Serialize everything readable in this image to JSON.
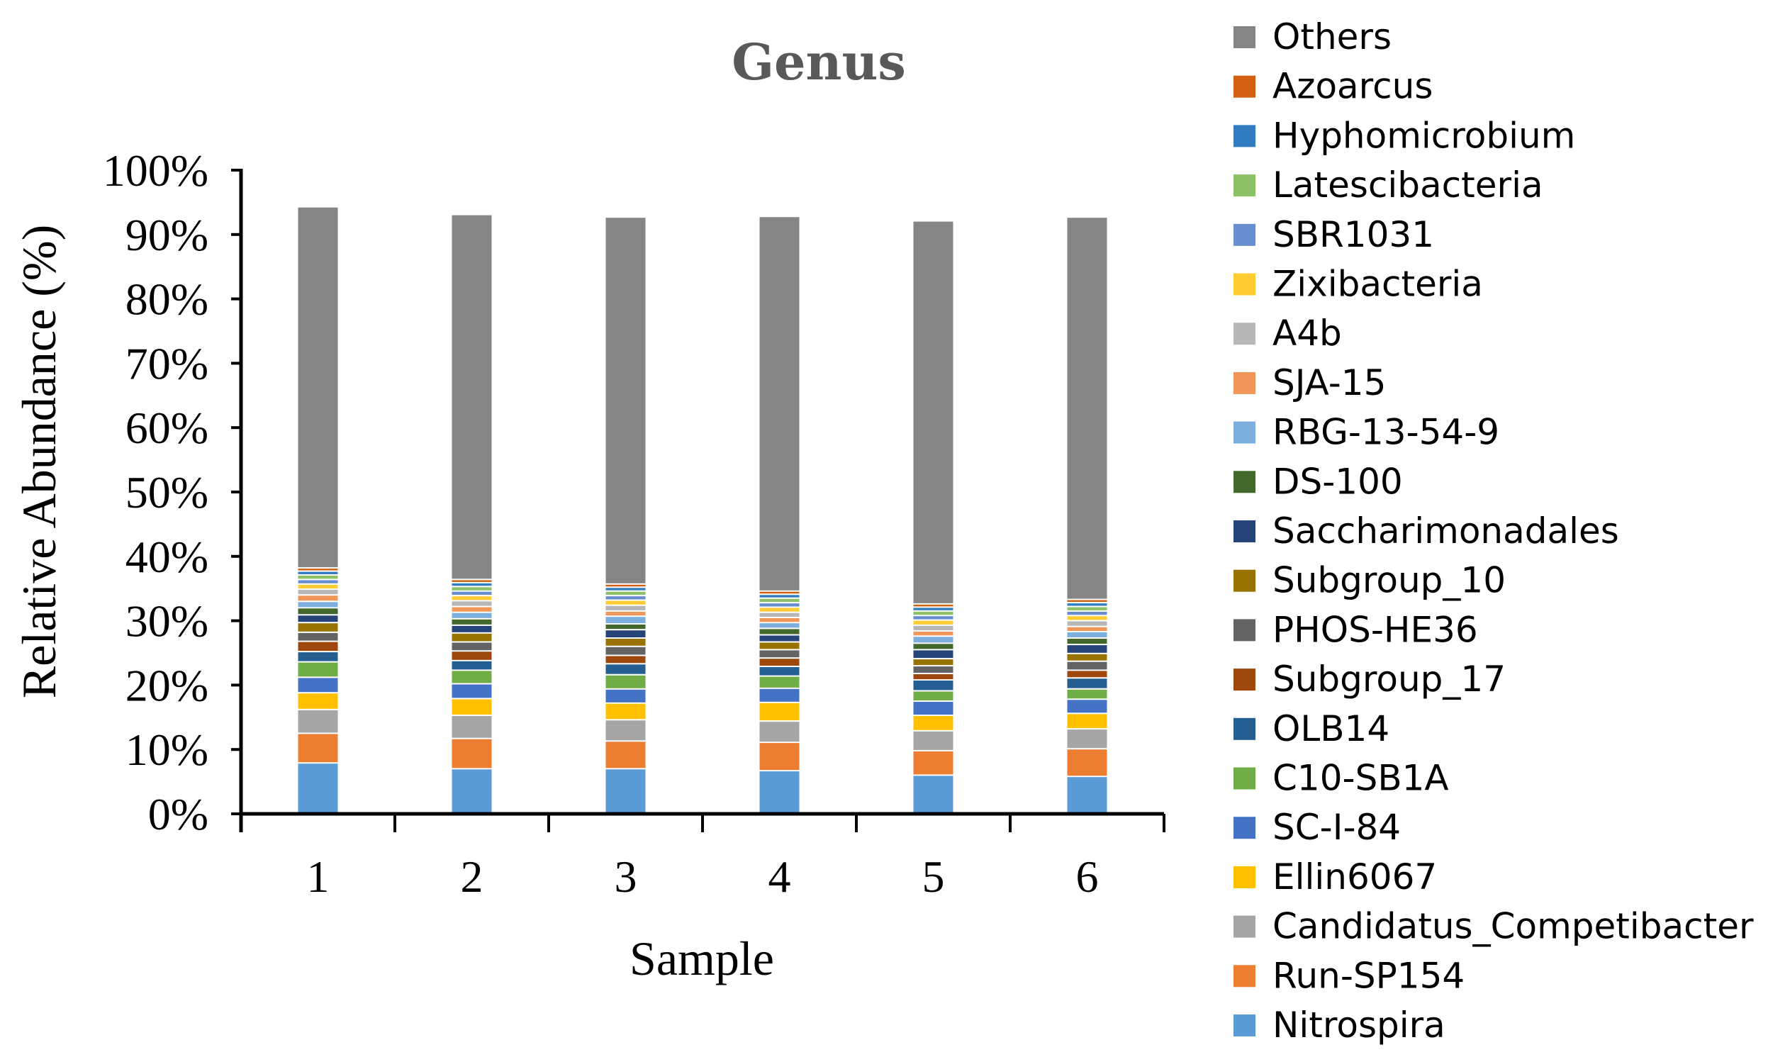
{
  "chart_data": {
    "type": "bar",
    "stacked": true,
    "title": "Genus",
    "xlabel": "Sample",
    "ylabel": "Relative Abundance (%)",
    "ylim": [
      0,
      100
    ],
    "y_ticks": [
      "0%",
      "10%",
      "20%",
      "30%",
      "40%",
      "50%",
      "60%",
      "70%",
      "80%",
      "90%",
      "100%"
    ],
    "categories": [
      "1",
      "2",
      "3",
      "4",
      "5",
      "6"
    ],
    "series": [
      {
        "name": "Nitrospira",
        "color": "#5B9BD5",
        "values": [
          7.8,
          6.9,
          6.9,
          6.6,
          5.9,
          5.7
        ]
      },
      {
        "name": "Run-SP154",
        "color": "#ED7D31",
        "values": [
          4.6,
          4.7,
          4.3,
          4.4,
          3.8,
          4.3
        ]
      },
      {
        "name": "Candidatus_Competibacter",
        "color": "#A5A5A5",
        "values": [
          3.7,
          3.6,
          3.3,
          3.3,
          3.1,
          3.1
        ]
      },
      {
        "name": "Ellin6067",
        "color": "#FFC000",
        "values": [
          2.6,
          2.6,
          2.6,
          2.9,
          2.4,
          2.4
        ]
      },
      {
        "name": "SC-I-84",
        "color": "#4472C4",
        "values": [
          2.4,
          2.3,
          2.2,
          2.2,
          2.2,
          2.2
        ]
      },
      {
        "name": "C10-SB1A",
        "color": "#70AD47",
        "values": [
          2.4,
          2.1,
          2.2,
          1.9,
          1.6,
          1.6
        ]
      },
      {
        "name": "OLB14",
        "color": "#255E91",
        "values": [
          1.6,
          1.5,
          1.7,
          1.5,
          1.7,
          1.7
        ]
      },
      {
        "name": "Subgroup_17",
        "color": "#9E480E",
        "values": [
          1.6,
          1.5,
          1.3,
          1.3,
          1.0,
          1.2
        ]
      },
      {
        "name": "PHOS-HE36",
        "color": "#636363",
        "values": [
          1.4,
          1.4,
          1.4,
          1.3,
          1.2,
          1.4
        ]
      },
      {
        "name": "Subgroup_10",
        "color": "#997300",
        "values": [
          1.5,
          1.4,
          1.3,
          1.2,
          1.1,
          1.2
        ]
      },
      {
        "name": "Saccharimonadales",
        "color": "#264478",
        "values": [
          1.2,
          1.2,
          1.3,
          1.1,
          1.4,
          1.4
        ]
      },
      {
        "name": "DS-100",
        "color": "#43682B",
        "values": [
          1.1,
          1.0,
          0.9,
          1.0,
          1.0,
          1.0
        ]
      },
      {
        "name": "RBG-13-54-9",
        "color": "#7CAFDD",
        "values": [
          1.0,
          1.0,
          1.2,
          0.9,
          1.1,
          1.0
        ]
      },
      {
        "name": "SJA-15",
        "color": "#F1975A",
        "values": [
          1.0,
          0.9,
          0.8,
          0.8,
          0.8,
          0.8
        ]
      },
      {
        "name": "A4b",
        "color": "#B7B7B7",
        "values": [
          0.9,
          0.9,
          0.9,
          0.8,
          0.9,
          0.9
        ]
      },
      {
        "name": "Zixibacteria",
        "color": "#FFCD33",
        "values": [
          0.8,
          0.8,
          0.8,
          0.8,
          0.8,
          0.8
        ]
      },
      {
        "name": "SBR1031",
        "color": "#698ED0",
        "values": [
          0.7,
          0.7,
          0.7,
          0.7,
          0.7,
          0.7
        ]
      },
      {
        "name": "Latescibacteria",
        "color": "#8CC168",
        "values": [
          0.7,
          0.7,
          0.7,
          0.7,
          0.7,
          0.7
        ]
      },
      {
        "name": "Hyphomicrobium",
        "color": "#327DC2",
        "values": [
          0.6,
          0.6,
          0.6,
          0.6,
          0.6,
          0.6
        ]
      },
      {
        "name": "Azoarcus",
        "color": "#D26012",
        "values": [
          0.5,
          0.5,
          0.5,
          0.5,
          0.5,
          0.5
        ]
      },
      {
        "name": "Others",
        "color": "#858585",
        "values": [
          56.1,
          56.7,
          57.0,
          58.2,
          59.5,
          59.4
        ]
      }
    ],
    "legend_position": "right",
    "legend_order": "reverse",
    "grid": false
  }
}
